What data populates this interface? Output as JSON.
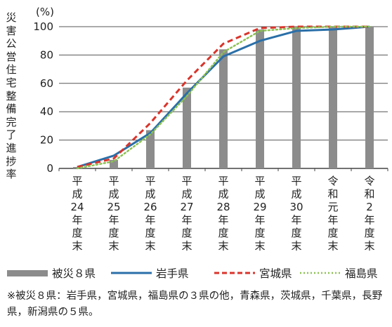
{
  "chart_data": {
    "type": "bar",
    "ylabel": "災害公営住宅整備完了進捗率",
    "yunit": "(%)",
    "ylim": [
      0,
      100
    ],
    "yticks": [
      0,
      20,
      40,
      60,
      80,
      100
    ],
    "grid": true,
    "legend_position": "bottom",
    "categories": [
      "平成24年度末",
      "平成25年度末",
      "平成26年度末",
      "平成27年度末",
      "平成28年度末",
      "平成29年度末",
      "平成30年度末",
      "令和元年度末",
      "令和2年度末"
    ],
    "series": [
      {
        "name": "被災８県",
        "kind": "bar",
        "color": "#8c8c8c",
        "values": [
          1,
          6,
          27,
          57,
          84,
          98,
          100,
          100,
          100
        ]
      },
      {
        "name": "岩手県",
        "kind": "line",
        "style": "solid",
        "color": "#2a6fa8",
        "values": [
          1,
          9,
          25,
          53,
          79,
          90,
          97,
          98,
          100
        ]
      },
      {
        "name": "宮城県",
        "kind": "line",
        "style": "dashed",
        "color": "#d9342b",
        "values": [
          1,
          7,
          32,
          62,
          88,
          99,
          100,
          100,
          100
        ]
      },
      {
        "name": "福島県",
        "kind": "line",
        "style": "dotted",
        "color": "#8cc152",
        "values": [
          0,
          5,
          24,
          51,
          82,
          97,
          99,
          100,
          100
        ]
      }
    ]
  },
  "footnote": "※被災８県：岩手県，宮城県，福島県の３県の他，青森県，茨城県，千葉県，長野県，新潟県の５県。"
}
